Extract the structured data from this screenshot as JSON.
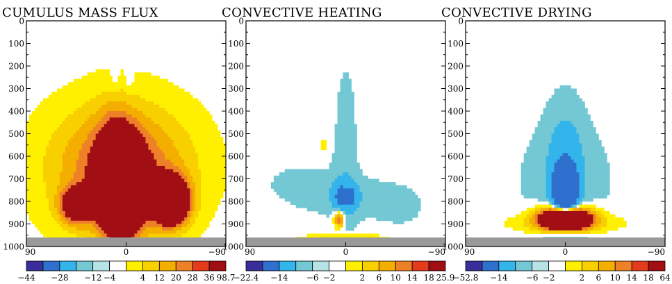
{
  "colors": {
    "palette": [
      "#3a2f9a",
      "#2f6fce",
      "#33b4ea",
      "#73c8d4",
      "#b7e3e6",
      "#ffffff",
      "#fff000",
      "#f8d000",
      "#f4ae00",
      "#ee8128",
      "#e43b1d",
      "#a10e14"
    ],
    "ground": "#999999"
  },
  "chart_data": [
    {
      "type": "contour",
      "title": "CUMULUS MASS FLUX",
      "xlim": [
        90,
        -90
      ],
      "ylim": [
        1000,
        0
      ],
      "x_ticks": [
        "90",
        "0",
        "-90"
      ],
      "y_ticks": [
        "0",
        "100",
        "200",
        "300",
        "400",
        "500",
        "600",
        "700",
        "800",
        "900",
        "1000"
      ],
      "colorbar_labels": [
        "−44",
        "−28",
        "−12",
        "−4",
        "4",
        "12",
        "20",
        "28",
        "36",
        "98.7"
      ],
      "features": [
        {
          "lat": 5,
          "p": 760,
          "value": 98.7,
          "sx": 13,
          "sy": 140
        },
        {
          "lat": -40,
          "p": 800,
          "value": 90,
          "sx": 11,
          "sy": 70
        },
        {
          "lat": 45,
          "p": 820,
          "value": 50,
          "sx": 10,
          "sy": 55
        },
        {
          "lat": 5,
          "p": 650,
          "value": 40,
          "sx": 45,
          "sy": 200
        },
        {
          "lat": 10,
          "p": 480,
          "value": 10,
          "sx": 12,
          "sy": 120
        },
        {
          "lat": 10,
          "p": 260,
          "value": -6,
          "sx": 3,
          "sy": 50
        },
        {
          "lat": -3,
          "p": 270,
          "value": -6,
          "sx": 3,
          "sy": 50
        }
      ]
    },
    {
      "type": "contour",
      "title": "CONVECTIVE HEATING",
      "xlim": [
        90,
        -90
      ],
      "ylim": [
        1000,
        0
      ],
      "x_ticks": [
        "90",
        "0",
        "-90"
      ],
      "y_ticks": [
        "0",
        "100",
        "200",
        "300",
        "400",
        "500",
        "600",
        "700",
        "800",
        "900",
        "1000"
      ],
      "colorbar_labels": [
        "−22.4",
        "−14",
        "−6",
        "−2",
        "2",
        "6",
        "10",
        "14",
        "18",
        "25.9"
      ],
      "features": [
        {
          "lat": 5,
          "p": 780,
          "value": -12,
          "sx": 4,
          "sy": 40
        },
        {
          "lat": -5,
          "p": 780,
          "value": -10,
          "sx": 4,
          "sy": 40
        },
        {
          "lat": 0,
          "p": 780,
          "value": -4,
          "sx": 25,
          "sy": 60
        },
        {
          "lat": 0,
          "p": 600,
          "value": -4,
          "sx": 8,
          "sy": 320
        },
        {
          "lat": 6,
          "p": 880,
          "value": 22,
          "sx": 3,
          "sy": 25
        },
        {
          "lat": 0,
          "p": 975,
          "value": 12,
          "sx": 25,
          "sy": 20
        },
        {
          "lat": 45,
          "p": 720,
          "value": -2.5,
          "sx": 30,
          "sy": 90
        },
        {
          "lat": -50,
          "p": 820,
          "value": -2.5,
          "sx": 25,
          "sy": 100
        },
        {
          "lat": 20,
          "p": 550,
          "value": 5,
          "sx": 2,
          "sy": 20
        }
      ]
    },
    {
      "type": "contour",
      "title": "CONVECTIVE DRYING",
      "xlim": [
        90,
        -90
      ],
      "ylim": [
        1000,
        0
      ],
      "x_ticks": [
        "90",
        "0",
        "-90"
      ],
      "y_ticks": [
        "0",
        "100",
        "200",
        "300",
        "400",
        "500",
        "600",
        "700",
        "800",
        "900",
        "1000"
      ],
      "colorbar_labels": [
        "−52.8",
        "−14",
        "−6",
        "−2",
        "2",
        "6",
        "10",
        "14",
        "18",
        "64"
      ],
      "features": [
        {
          "lat": 0,
          "p": 760,
          "value": -40,
          "sx": 7,
          "sy": 80
        },
        {
          "lat": 0,
          "p": 650,
          "value": -8,
          "sx": 12,
          "sy": 200
        },
        {
          "lat": 0,
          "p": 700,
          "value": -3,
          "sx": 45,
          "sy": 220
        },
        {
          "lat": 0,
          "p": 875,
          "value": 60,
          "sx": 15,
          "sy": 35
        },
        {
          "lat": 0,
          "p": 895,
          "value": 10,
          "sx": 35,
          "sy": 35
        },
        {
          "lat": 0,
          "p": 975,
          "value": -3,
          "sx": 30,
          "sy": 25
        }
      ]
    }
  ]
}
